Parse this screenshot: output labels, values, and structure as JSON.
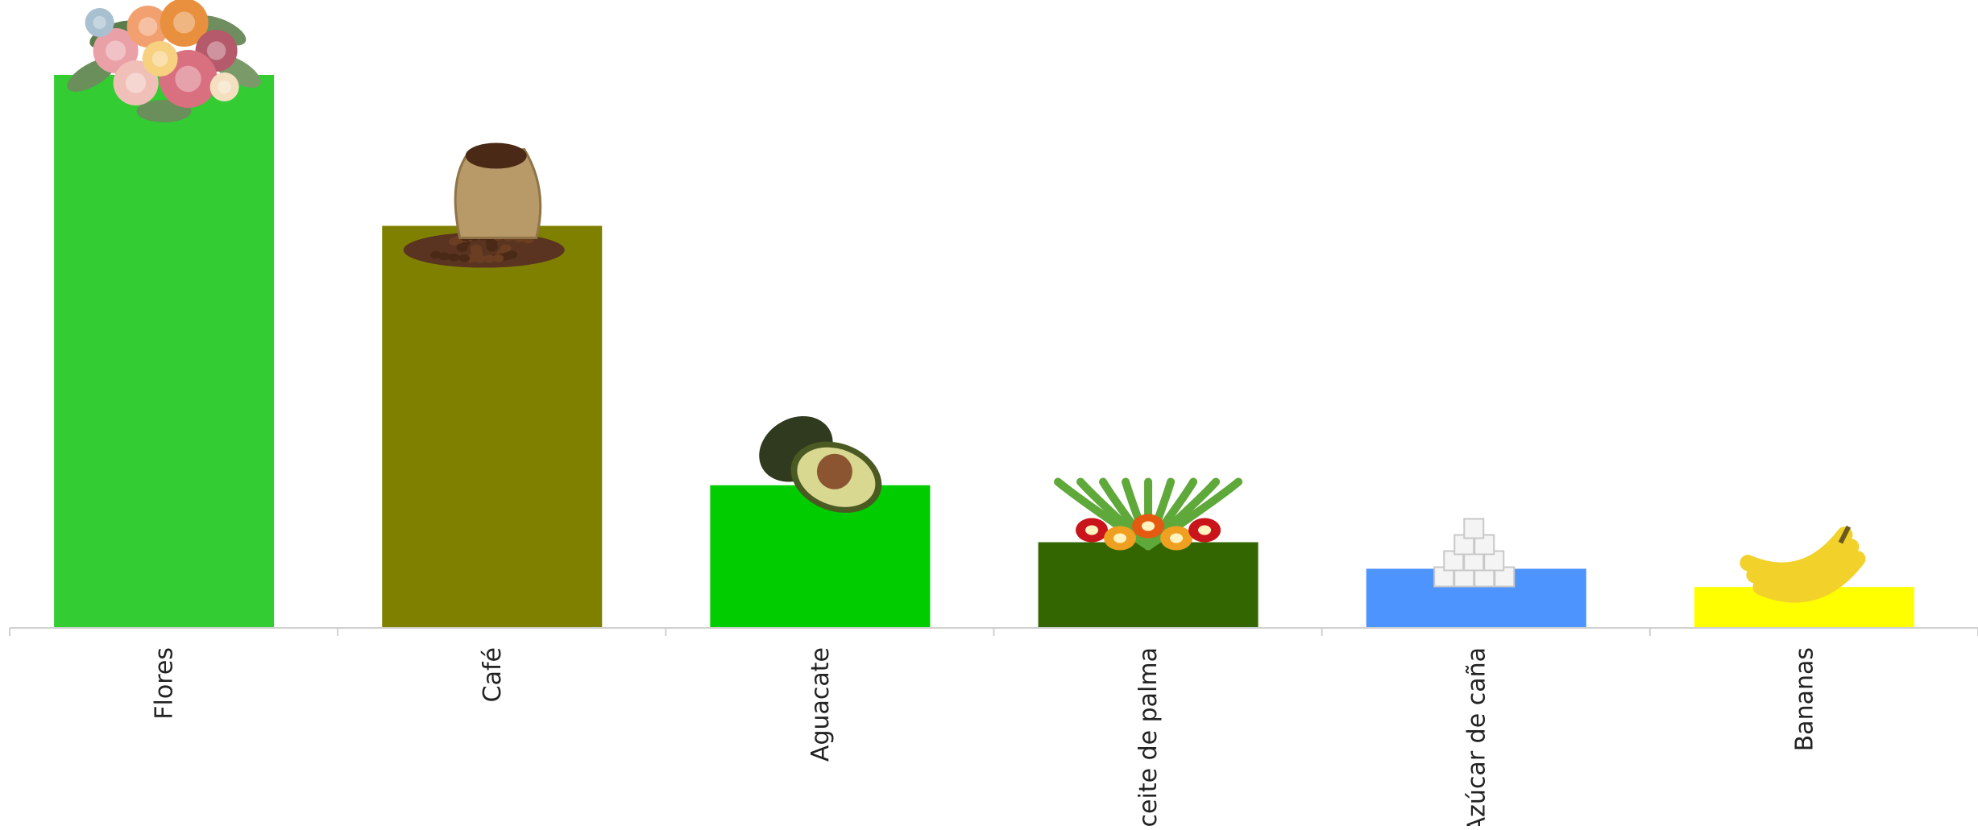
{
  "chart_data": {
    "type": "bar",
    "title": "",
    "xlabel": "",
    "ylabel": "",
    "categories": [
      "Flores",
      "Café",
      "Aguacate",
      "Aceite de palma",
      "Azúcar de caña",
      "Bananas"
    ],
    "values": [
      100,
      72.7,
      25.8,
      15.5,
      10.7,
      7.4
    ],
    "ylim": [
      0,
      100
    ],
    "grid": false,
    "legend": "none",
    "colors": [
      "#33cc33",
      "#808000",
      "#00cc00",
      "#336600",
      "#4d94ff",
      "#ffff00"
    ],
    "icons": [
      "flower-bouquet-icon",
      "coffee-sack-icon",
      "avocado-icon",
      "palm-fruit-icon",
      "sugar-cubes-icon",
      "banana-bunch-icon"
    ]
  }
}
